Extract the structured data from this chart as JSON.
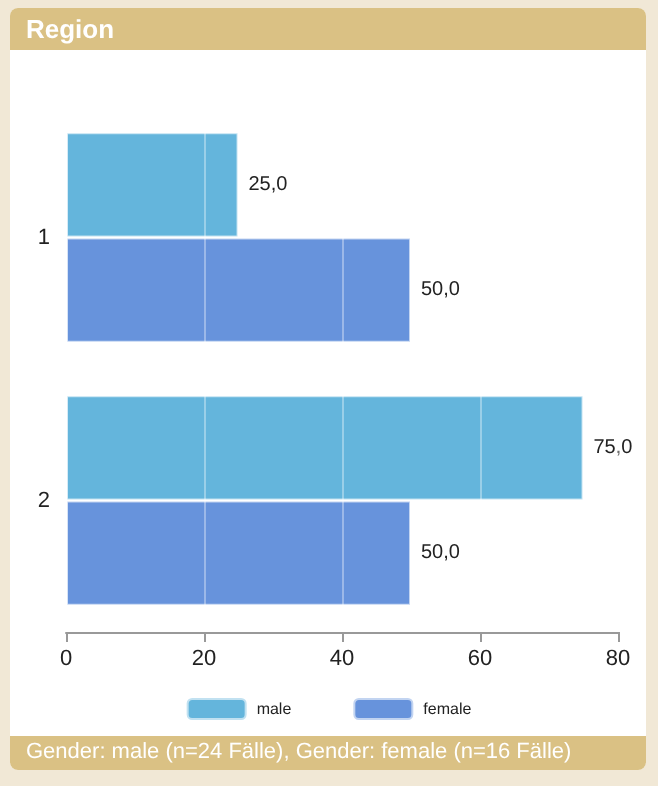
{
  "chart_data": {
    "type": "bar",
    "orientation": "horizontal",
    "title": "Region",
    "annotations": [
      "Gender: male (n=24 Fälle), Gender: female (n=16 Fälle)"
    ],
    "categories": [
      "1",
      "2"
    ],
    "series": [
      {
        "name": "male",
        "color": "#64b5dc",
        "values": [
          25,
          75
        ],
        "value_labels": [
          "25,0",
          "75,0"
        ]
      },
      {
        "name": "female",
        "color": "#6793dc",
        "values": [
          50,
          50
        ],
        "value_labels": [
          "50,0",
          "50,0"
        ]
      }
    ],
    "xlim": [
      0,
      80
    ],
    "xticks": [
      0,
      20,
      40,
      60,
      80
    ],
    "grid": "x",
    "legend": "bottom"
  }
}
